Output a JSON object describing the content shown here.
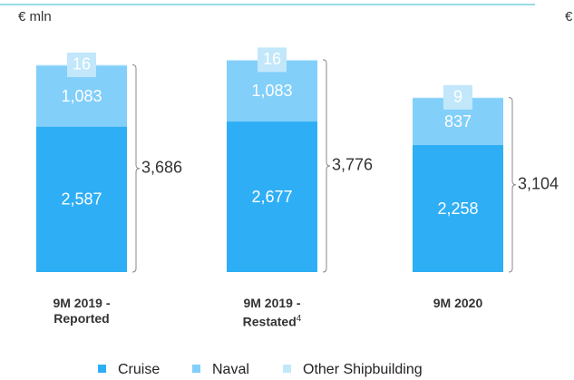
{
  "chart_data": {
    "type": "stacked_bar",
    "unit_label": "€ mln",
    "cut_label": "€",
    "categories": [
      "9M 2019 - Reported",
      "9M 2019 - Restated",
      "9M 2020"
    ],
    "category_notes": [
      null,
      "4",
      null
    ],
    "series": [
      {
        "name": "Cruise",
        "color": "#2eaef5",
        "values": [
          2587,
          2677,
          2258
        ],
        "value_labels": [
          "2,587",
          "2,677",
          "2,258"
        ]
      },
      {
        "name": "Naval",
        "color": "#82cffa",
        "values": [
          1083,
          1083,
          837
        ],
        "value_labels": [
          "1,083",
          "1,083",
          "837"
        ]
      },
      {
        "name": "Other Shipbuilding",
        "color": "#c2e7fb",
        "values": [
          16,
          16,
          9
        ]
      }
    ],
    "totals": [
      3686,
      3776,
      3104
    ],
    "total_labels": [
      "3,686",
      "3,776",
      "3,104"
    ]
  }
}
